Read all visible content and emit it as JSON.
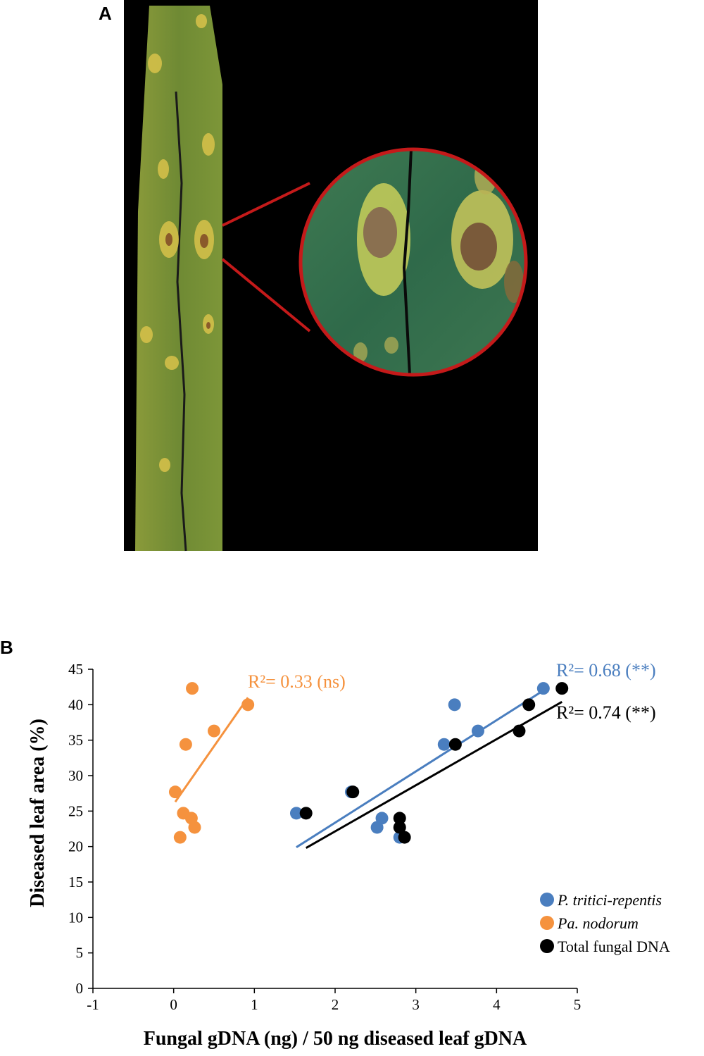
{
  "panel_a": {
    "label": "A"
  },
  "panel_b": {
    "label": "B"
  },
  "colors": {
    "ptr": "#4a7ebf",
    "pan": "#f5923e",
    "total": "#000000",
    "leaf_bg": "#000000",
    "zoom_ring": "#c41a1a"
  },
  "chart_data": {
    "type": "scatter",
    "xlabel": "Fungal gDNA (ng) / 50 ng diseased leaf gDNA",
    "ylabel": "Diseased leaf area (%)",
    "xlim": [
      -1,
      5
    ],
    "ylim": [
      0,
      45
    ],
    "xticks": [
      "-1",
      "0",
      "1",
      "2",
      "3",
      "4",
      "5"
    ],
    "yticks": [
      "0",
      "5",
      "10",
      "15",
      "20",
      "25",
      "30",
      "35",
      "40",
      "45"
    ],
    "grid": false,
    "legend_position": "bottom-right",
    "series": [
      {
        "name": "P. tritici-repentis",
        "key": "ptr",
        "color": "#4a7ebf",
        "italic": true,
        "points": [
          [
            1.52,
            24.7
          ],
          [
            2.2,
            27.7
          ],
          [
            2.52,
            22.7
          ],
          [
            2.58,
            24.0
          ],
          [
            2.8,
            21.3
          ],
          [
            3.35,
            34.4
          ],
          [
            3.48,
            40.0
          ],
          [
            3.77,
            36.3
          ],
          [
            4.58,
            42.3
          ]
        ],
        "fit": {
          "x": [
            1.52,
            4.58
          ],
          "y": [
            19.9,
            42.0
          ]
        },
        "r2_label": "R²= 0.68 (**)"
      },
      {
        "name": "Pa. nodorum",
        "key": "pan",
        "color": "#f5923e",
        "italic": true,
        "points": [
          [
            0.02,
            27.7
          ],
          [
            0.08,
            21.3
          ],
          [
            0.12,
            24.7
          ],
          [
            0.15,
            34.4
          ],
          [
            0.22,
            24.0
          ],
          [
            0.23,
            42.3
          ],
          [
            0.26,
            22.7
          ],
          [
            0.5,
            36.3
          ],
          [
            0.92,
            40.0
          ]
        ],
        "fit": {
          "x": [
            0.02,
            0.92
          ],
          "y": [
            26.3,
            41.0
          ]
        },
        "r2_label": "R²= 0.33 (ns)"
      },
      {
        "name": "Total fungal DNA",
        "key": "total",
        "color": "#000000",
        "italic": false,
        "points": [
          [
            1.64,
            24.7
          ],
          [
            2.22,
            27.7
          ],
          [
            2.8,
            22.7
          ],
          [
            2.8,
            24.0
          ],
          [
            2.86,
            21.3
          ],
          [
            3.49,
            34.4
          ],
          [
            4.28,
            36.3
          ],
          [
            4.4,
            40.0
          ],
          [
            4.81,
            42.3
          ]
        ],
        "fit": {
          "x": [
            1.64,
            4.81
          ],
          "y": [
            19.8,
            40.4
          ]
        },
        "r2_label": "R²= 0.74 (**)"
      }
    ]
  }
}
